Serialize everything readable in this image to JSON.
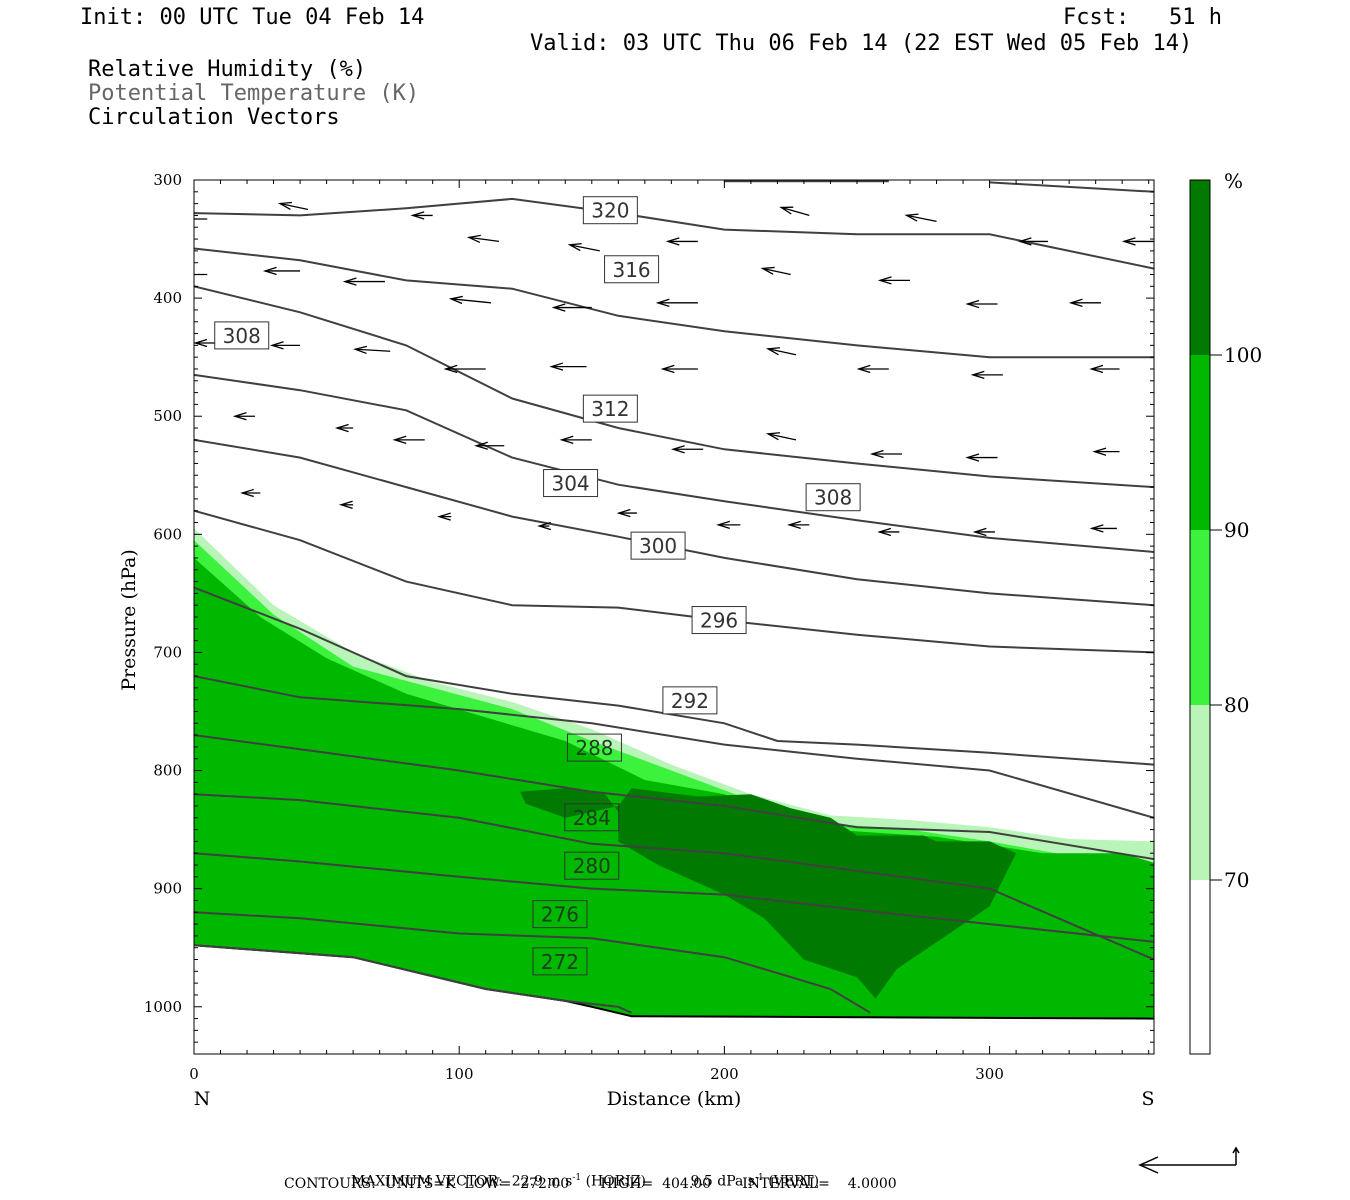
{
  "header": {
    "init": "Init: 00 UTC Tue 04 Feb 14",
    "fcst": "Fcst:   51 h",
    "valid": "Valid: 03 UTC Thu 06 Feb 14 (22 EST Wed 05 Feb 14)",
    "legend_rh": "Relative Humidity (%)",
    "legend_theta": "Potential Temperature (K)",
    "legend_vec": "Circulation Vectors"
  },
  "footer": {
    "max_vector_label": "MAXIMUM VECTOR:",
    "max_horiz": "22.9 m s",
    "horiz_tag": "(HORIZ)",
    "max_vert": "9.5 dPa s",
    "vert_tag": "(VERT)",
    "sup": "-1",
    "contours_line": "CONTOURS:  UNITS=K  LOW=  272.00       HIGH=  404.00       INTERVAL=    4.0000"
  },
  "colorbar": {
    "unit": "%",
    "levels": [
      "70",
      "80",
      "90",
      "100"
    ],
    "colors": [
      "#ffffff",
      "#b9f5b9",
      "#3df23d",
      "#00b800",
      "#007a00"
    ]
  },
  "chart_data": {
    "type": "cross-section",
    "xlabel": "Distance (km)",
    "ylabel": "Pressure (hPa)",
    "x_left_label": "N",
    "x_right_label": "S",
    "xlim": [
      0,
      362
    ],
    "ylim": [
      1040,
      300
    ],
    "xticks": [
      0,
      100,
      200,
      300
    ],
    "yticks": [
      300,
      400,
      500,
      600,
      700,
      800,
      900,
      1000
    ],
    "contour_unit": "K",
    "contour_interval": 4,
    "contour_labels": [
      {
        "value": "320",
        "x": 157,
        "p": 326
      },
      {
        "value": "316",
        "x": 165,
        "p": 376
      },
      {
        "value": "308",
        "x": 18,
        "p": 432
      },
      {
        "value": "312",
        "x": 157,
        "p": 494
      },
      {
        "value": "304",
        "x": 142,
        "p": 557
      },
      {
        "value": "308",
        "x": 241,
        "p": 569
      },
      {
        "value": "300",
        "x": 175,
        "p": 610
      },
      {
        "value": "296",
        "x": 198,
        "p": 673
      },
      {
        "value": "292",
        "x": 187,
        "p": 741
      },
      {
        "value": "288",
        "x": 151,
        "p": 781
      },
      {
        "value": "284",
        "x": 150,
        "p": 840
      },
      {
        "value": "280",
        "x": 150,
        "p": 881
      },
      {
        "value": "276",
        "x": 138,
        "p": 922
      },
      {
        "value": "272",
        "x": 138,
        "p": 962
      }
    ],
    "isentropes": [
      [
        [
          0,
          948
        ],
        [
          60,
          958
        ],
        [
          110,
          985
        ],
        [
          140,
          995
        ],
        [
          160,
          1000
        ],
        [
          165,
          1005
        ]
      ],
      [
        [
          0,
          920
        ],
        [
          40,
          925
        ],
        [
          100,
          938
        ],
        [
          150,
          942
        ],
        [
          200,
          958
        ],
        [
          240,
          985
        ],
        [
          255,
          1005
        ]
      ],
      [
        [
          0,
          870
        ],
        [
          40,
          877
        ],
        [
          100,
          890
        ],
        [
          150,
          900
        ],
        [
          200,
          905
        ],
        [
          250,
          918
        ],
        [
          300,
          930
        ],
        [
          362,
          945
        ]
      ],
      [
        [
          0,
          820
        ],
        [
          40,
          825
        ],
        [
          100,
          840
        ],
        [
          150,
          862
        ],
        [
          200,
          870
        ],
        [
          250,
          885
        ],
        [
          300,
          900
        ],
        [
          362,
          960
        ]
      ],
      [
        [
          0,
          770
        ],
        [
          40,
          782
        ],
        [
          100,
          800
        ],
        [
          150,
          818
        ],
        [
          200,
          830
        ],
        [
          250,
          848
        ],
        [
          300,
          852
        ],
        [
          362,
          875
        ]
      ],
      [
        [
          0,
          720
        ],
        [
          40,
          738
        ],
        [
          100,
          748
        ],
        [
          150,
          760
        ],
        [
          200,
          778
        ],
        [
          250,
          790
        ],
        [
          300,
          800
        ],
        [
          362,
          840
        ]
      ],
      [
        [
          0,
          645
        ],
        [
          40,
          680
        ],
        [
          80,
          720
        ],
        [
          120,
          735
        ],
        [
          160,
          745
        ],
        [
          200,
          760
        ],
        [
          220,
          775
        ],
        [
          250,
          778
        ],
        [
          300,
          785
        ],
        [
          362,
          795
        ]
      ],
      [
        [
          0,
          580
        ],
        [
          40,
          605
        ],
        [
          80,
          640
        ],
        [
          120,
          660
        ],
        [
          160,
          662
        ],
        [
          200,
          673
        ],
        [
          250,
          685
        ],
        [
          300,
          695
        ],
        [
          362,
          700
        ]
      ],
      [
        [
          0,
          520
        ],
        [
          40,
          535
        ],
        [
          80,
          560
        ],
        [
          120,
          585
        ],
        [
          160,
          602
        ],
        [
          200,
          620
        ],
        [
          250,
          638
        ],
        [
          300,
          650
        ],
        [
          362,
          660
        ]
      ],
      [
        [
          0,
          465
        ],
        [
          40,
          478
        ],
        [
          80,
          495
        ],
        [
          120,
          535
        ],
        [
          160,
          558
        ],
        [
          200,
          572
        ],
        [
          250,
          588
        ],
        [
          300,
          603
        ],
        [
          362,
          615
        ]
      ],
      [
        [
          0,
          390
        ],
        [
          40,
          412
        ],
        [
          80,
          440
        ],
        [
          120,
          485
        ],
        [
          160,
          510
        ],
        [
          200,
          528
        ],
        [
          250,
          540
        ],
        [
          300,
          551
        ],
        [
          362,
          560
        ]
      ],
      [
        [
          0,
          358
        ],
        [
          40,
          368
        ],
        [
          80,
          385
        ],
        [
          120,
          392
        ],
        [
          160,
          415
        ],
        [
          200,
          428
        ],
        [
          250,
          440
        ],
        [
          300,
          450
        ],
        [
          362,
          450
        ]
      ],
      [
        [
          0,
          328
        ],
        [
          40,
          330
        ],
        [
          80,
          324
        ],
        [
          120,
          316
        ],
        [
          160,
          328
        ],
        [
          200,
          342
        ],
        [
          250,
          346
        ],
        [
          300,
          346
        ],
        [
          362,
          375
        ]
      ],
      [
        [
          200,
          301
        ],
        [
          262,
          301
        ]
      ],
      [
        [
          300,
          302
        ],
        [
          362,
          310
        ]
      ]
    ],
    "rh_shading": {
      "threshold_70": [
        [
          0,
          595
        ],
        [
          30,
          660
        ],
        [
          60,
          700
        ],
        [
          90,
          725
        ],
        [
          120,
          742
        ],
        [
          150,
          765
        ],
        [
          180,
          795
        ],
        [
          210,
          820
        ],
        [
          240,
          838
        ],
        [
          270,
          842
        ],
        [
          300,
          848
        ],
        [
          330,
          858
        ],
        [
          362,
          860
        ]
      ],
      "threshold_80": [
        [
          0,
          605
        ],
        [
          30,
          668
        ],
        [
          60,
          712
        ],
        [
          90,
          730
        ],
        [
          120,
          748
        ],
        [
          150,
          775
        ],
        [
          180,
          800
        ],
        [
          210,
          825
        ],
        [
          240,
          845
        ],
        [
          270,
          850
        ],
        [
          300,
          860
        ],
        [
          330,
          872
        ],
        [
          362,
          880
        ]
      ],
      "threshold_90": [
        [
          0,
          620
        ],
        [
          25,
          670
        ],
        [
          50,
          705
        ],
        [
          80,
          735
        ],
        [
          110,
          755
        ],
        [
          140,
          775
        ],
        [
          170,
          808
        ],
        [
          200,
          820
        ],
        [
          240,
          850
        ],
        [
          280,
          856
        ],
        [
          320,
          870
        ],
        [
          350,
          870
        ],
        [
          362,
          878
        ]
      ],
      "threshold_100": [
        [
          123,
          818
        ],
        [
          140,
          815
        ],
        [
          155,
          820
        ],
        [
          160,
          835
        ],
        [
          160,
          860
        ],
        [
          175,
          880
        ],
        [
          200,
          905
        ],
        [
          215,
          925
        ],
        [
          230,
          960
        ],
        [
          250,
          975
        ],
        [
          257,
          993
        ],
        [
          265,
          968
        ],
        [
          300,
          915
        ],
        [
          310,
          870
        ],
        [
          300,
          860
        ],
        [
          280,
          860
        ],
        [
          275,
          855
        ],
        [
          250,
          855
        ],
        [
          240,
          840
        ],
        [
          225,
          832
        ],
        [
          210,
          820
        ],
        [
          190,
          822
        ],
        [
          165,
          815
        ],
        [
          160,
          830
        ],
        [
          140,
          840
        ],
        [
          125,
          828
        ]
      ],
      "ground": [
        [
          0,
          948
        ],
        [
          60,
          958
        ],
        [
          110,
          985
        ],
        [
          140,
          995
        ],
        [
          150,
          1000
        ],
        [
          165,
          1008
        ],
        [
          362,
          1010
        ]
      ]
    },
    "vectors_note": "circulation vectors (horizontal/vertical wind in section plane), approximate",
    "vectors": [
      [
        5,
        333,
        -60,
        0
      ],
      [
        43,
        325,
        -28,
        -6
      ],
      [
        90,
        330,
        -20,
        0
      ],
      [
        115,
        352,
        -30,
        -4
      ],
      [
        153,
        360,
        -30,
        -6
      ],
      [
        190,
        352,
        -30,
        0
      ],
      [
        232,
        330,
        -28,
        -8
      ],
      [
        280,
        335,
        -30,
        -6
      ],
      [
        322,
        352,
        -28,
        0
      ],
      [
        362,
        352,
        -30,
        0
      ],
      [
        5,
        380,
        -60,
        0
      ],
      [
        40,
        377,
        -35,
        0
      ],
      [
        72,
        386,
        -40,
        0
      ],
      [
        112,
        404,
        -40,
        -4
      ],
      [
        150,
        408,
        -38,
        0
      ],
      [
        190,
        404,
        -40,
        0
      ],
      [
        225,
        380,
        -28,
        -6
      ],
      [
        270,
        385,
        -30,
        0
      ],
      [
        303,
        405,
        -30,
        0
      ],
      [
        342,
        404,
        -30,
        0
      ],
      [
        10,
        438,
        -25,
        0
      ],
      [
        40,
        440,
        -28,
        0
      ],
      [
        74,
        445,
        -35,
        -2
      ],
      [
        110,
        460,
        -40,
        0
      ],
      [
        148,
        458,
        -35,
        0
      ],
      [
        190,
        460,
        -35,
        0
      ],
      [
        227,
        448,
        -28,
        -6
      ],
      [
        262,
        460,
        -30,
        0
      ],
      [
        305,
        465,
        -30,
        0
      ],
      [
        349,
        460,
        -28,
        0
      ],
      [
        23,
        500,
        -20,
        0
      ],
      [
        60,
        510,
        -16,
        0
      ],
      [
        87,
        520,
        -30,
        0
      ],
      [
        117,
        525,
        -28,
        0
      ],
      [
        150,
        520,
        -30,
        0
      ],
      [
        192,
        528,
        -30,
        0
      ],
      [
        227,
        520,
        -28,
        -6
      ],
      [
        267,
        532,
        -30,
        0
      ],
      [
        303,
        535,
        -30,
        0
      ],
      [
        349,
        530,
        -25,
        0
      ],
      [
        25,
        565,
        -18,
        0
      ],
      [
        60,
        575,
        -12,
        0
      ],
      [
        97,
        585,
        -12,
        0
      ],
      [
        134,
        593,
        -10,
        0
      ],
      [
        167,
        582,
        -18,
        0
      ],
      [
        206,
        592,
        -22,
        0
      ],
      [
        232,
        592,
        -20,
        0
      ],
      [
        266,
        598,
        -20,
        0
      ],
      [
        302,
        598,
        -20,
        0
      ],
      [
        348,
        595,
        -25,
        0
      ]
    ]
  }
}
